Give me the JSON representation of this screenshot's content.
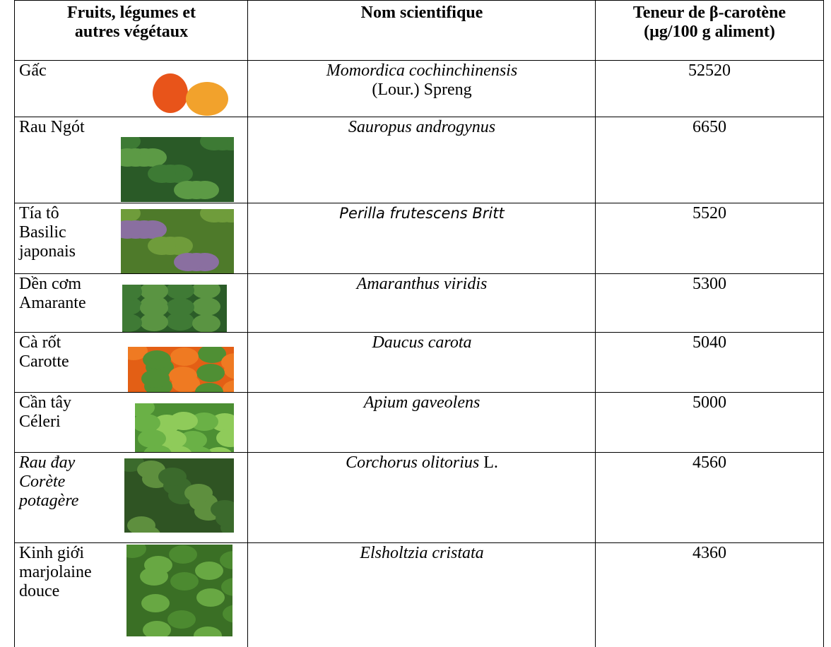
{
  "table": {
    "header": [
      [
        "Fruits, légumes et",
        "autres végétaux"
      ],
      [
        "Nom scientifique"
      ],
      [
        "Teneur de β-carotène",
        "(µg/100 g aliment)"
      ]
    ],
    "rows": [
      {
        "name": [
          "Gấc"
        ],
        "scientific": [
          [
            {
              "text": "Momordica cochinchinensis",
              "italic": true
            }
          ],
          [
            {
              "text": "(Lour.) Spreng",
              "italic": false
            }
          ]
        ],
        "content": 52520
      },
      {
        "name": [
          "Rau Ngót"
        ],
        "scientific": [
          [
            {
              "text": "Sauropus androgynus",
              "italic": true
            }
          ]
        ],
        "content": 6650
      },
      {
        "name": [
          "Tía tô",
          "Basilic",
          "japonais"
        ],
        "scientific": [
          [
            {
              "text": "Perilla frutescens Britt",
              "italic": true,
              "sans": true
            }
          ]
        ],
        "content": 5520
      },
      {
        "name": [
          "Dền cơm",
          "Amarante"
        ],
        "scientific": [
          [
            {
              "text": "Amaranthus viridis",
              "italic": true
            }
          ]
        ],
        "content": 5300
      },
      {
        "name": [
          "Cà rốt",
          "Carotte"
        ],
        "scientific": [
          [
            {
              "text": "Daucus carota",
              "italic": true
            }
          ]
        ],
        "content": 5040
      },
      {
        "name": [
          "Cần tây",
          "Céleri"
        ],
        "scientific": [
          [
            {
              "text": "Apium gaveolens",
              "italic": true
            }
          ]
        ],
        "content": 5000
      },
      {
        "name": [
          "Rau đay",
          "Corète",
          "potagère"
        ],
        "name_italic": true,
        "scientific": [
          [
            {
              "text": "Corchorus olitorius",
              "italic": true
            },
            {
              "text": "L.",
              "italic": false
            }
          ]
        ],
        "content": 4560
      },
      {
        "name": [
          "Kinh giới",
          "marjolaine",
          "douce"
        ],
        "scientific": [
          [
            {
              "text": "Elsholtzia cristata",
              "italic": true
            }
          ]
        ],
        "content": 4360
      }
    ]
  }
}
